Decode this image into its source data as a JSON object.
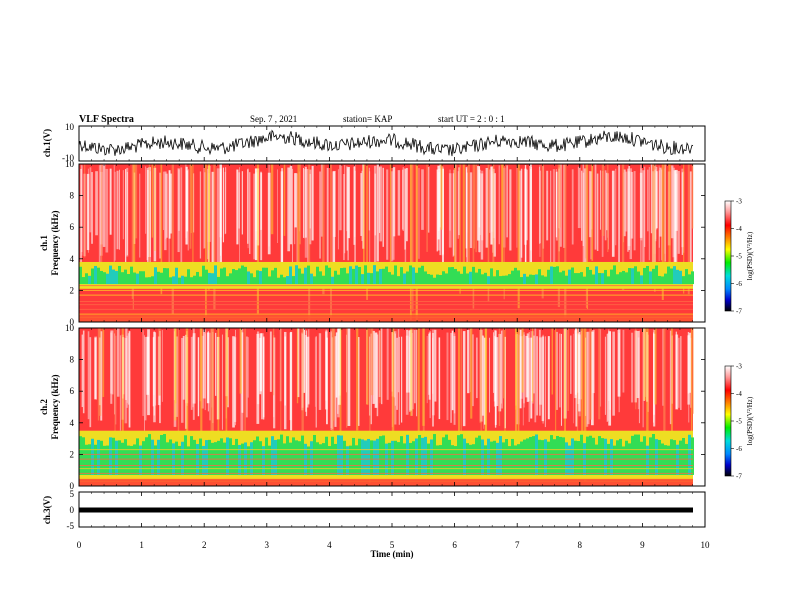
{
  "header": {
    "title": "VLF Spectra",
    "date": "Sep. 7 , 2021",
    "station": "station= KAP",
    "start_ut": "start UT =  2 : 0 : 1"
  },
  "chart_data": [
    {
      "type": "line",
      "id": "ch1-waveform",
      "ylabel": "ch.1(V)",
      "ylim": [
        -10,
        10
      ],
      "y_ticks": [
        "10",
        "-10"
      ],
      "xlim": [
        0,
        10
      ],
      "description": "time series"
    },
    {
      "type": "heatmap",
      "id": "ch1-spectrogram",
      "ylabel": "ch.1 Frequency (kHz)",
      "ylim": [
        0,
        10
      ],
      "y_ticks": [
        "0",
        "2",
        "4",
        "6",
        "8",
        "10"
      ],
      "xlim": [
        0,
        10
      ],
      "colorbar": {
        "label": "log(PSD)(V²/Hz)",
        "range": [
          -7,
          -3
        ],
        "ticks": [
          "-3",
          "-4",
          "-5",
          "-6",
          "-7"
        ]
      }
    },
    {
      "type": "heatmap",
      "id": "ch2-spectrogram",
      "ylabel": "ch.2 Frequency (kHz)",
      "ylim": [
        0,
        10
      ],
      "y_ticks": [
        "0",
        "2",
        "4",
        "6",
        "8",
        "10"
      ],
      "xlim": [
        0,
        10
      ],
      "colorbar": {
        "label": "log(PSD)(V²/Hz)",
        "range": [
          -7,
          -3
        ],
        "ticks": [
          "-3",
          "-4",
          "-5",
          "-6",
          "-7"
        ]
      }
    },
    {
      "type": "line",
      "id": "ch3-waveform",
      "ylabel": "ch.3(V)",
      "ylim": [
        -5,
        5
      ],
      "y_ticks": [
        "5",
        "0",
        "-5"
      ],
      "xlim": [
        0,
        10
      ]
    }
  ],
  "x_axis": {
    "label": "Time (min)",
    "ticks": [
      "0",
      "1",
      "2",
      "3",
      "4",
      "5",
      "6",
      "7",
      "8",
      "9",
      "10"
    ]
  },
  "colors": {
    "spectrogram_bg": "#ff3333",
    "band_green": "#33dd55",
    "band_yellow": "#eedd22",
    "band_cyan": "#22ddcc"
  }
}
